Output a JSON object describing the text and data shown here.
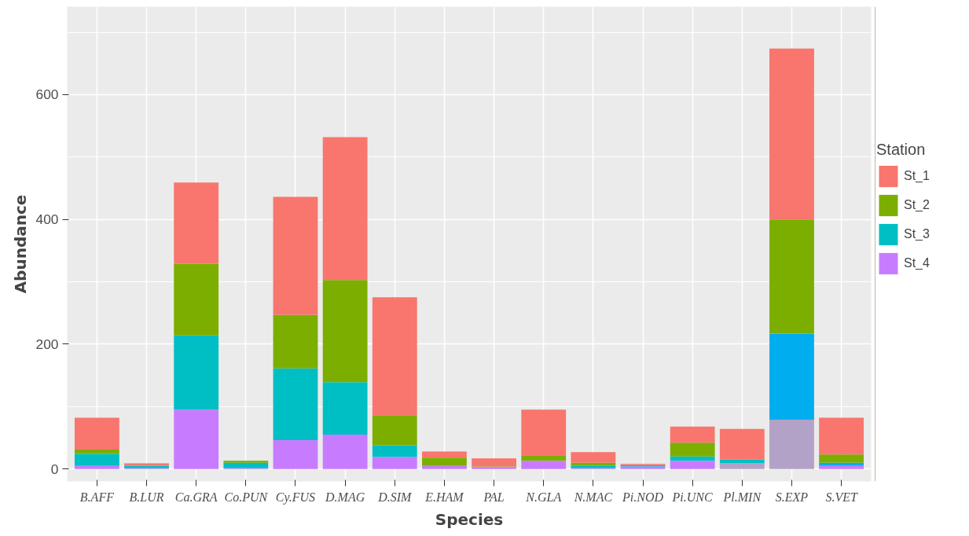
{
  "chart_data": {
    "type": "bar",
    "stacked": true,
    "xlabel": "Species",
    "ylabel": "Abundance",
    "legend_title": "Station",
    "legend": "right",
    "grid": true,
    "categories": [
      "B.AFF",
      "B.LUR",
      "Ca.GRA",
      "Co.PUN",
      "Cy.FUS",
      "D.MAG",
      "D.SIM",
      "E.HAM",
      "PAL",
      "N.GLA",
      "N.MAC",
      "Pi.NOD",
      "Pi.UNC",
      "Pl.MIN",
      "S.EXP",
      "S.VET"
    ],
    "ylim": [
      -20,
      741
    ],
    "yticks": [
      0,
      200,
      400,
      600
    ],
    "series": [
      {
        "name": "St_4",
        "color": "#c77cff",
        "colors": [
          "#c77cff",
          "#c77cff",
          "#c77cff",
          "#c77cff",
          "#c77cff",
          "#c77cff",
          "#c77cff",
          "#c77cff",
          "#c77cff",
          "#c77cff",
          "#c77cff",
          "#c77cff",
          "#c77cff",
          "#b3a2c7",
          "#b3a2c7",
          "#c77cff"
        ],
        "values": [
          5,
          1,
          95,
          1,
          46,
          55,
          19,
          5,
          3,
          13,
          1,
          4,
          13,
          9,
          79,
          5
        ]
      },
      {
        "name": "St_3",
        "color": "#00bfc4",
        "colors": [
          "#00bfc4",
          "#00bfc4",
          "#00bfc4",
          "#00bfc4",
          "#00bfc4",
          "#00bfc4",
          "#00bfc4",
          "#00bfc4",
          "#00bfc4",
          "#00bfc4",
          "#00bfc4",
          "#00bfc4",
          "#00bfc4",
          "#00bfc4",
          "#00aeef",
          "#00aeef"
        ],
        "values": [
          19,
          4,
          119,
          9,
          115,
          84,
          19,
          0,
          null,
          null,
          4,
          2,
          7,
          6,
          138,
          5
        ]
      },
      {
        "name": "St_2",
        "color": "#7cae00",
        "values": [
          7,
          0,
          115,
          3,
          86,
          164,
          48,
          13,
          1,
          9,
          5,
          0,
          22,
          0,
          183,
          13
        ]
      },
      {
        "name": "St_1",
        "color": "#f8766d",
        "values": [
          51,
          4,
          130,
          null,
          189,
          229,
          189,
          10,
          13,
          73,
          17,
          2,
          26,
          49,
          274,
          59
        ]
      }
    ]
  }
}
